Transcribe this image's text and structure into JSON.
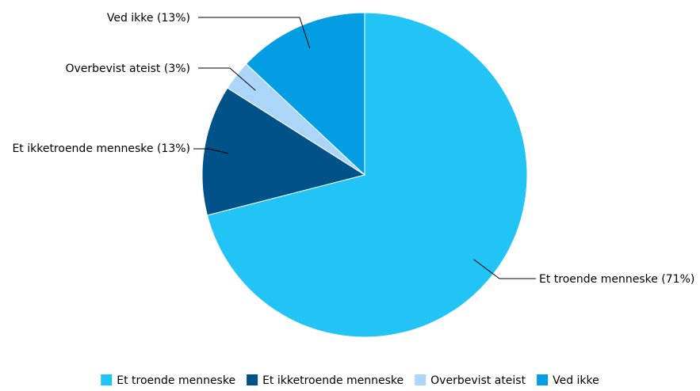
{
  "chart_data": {
    "type": "pie",
    "title": "",
    "slices": [
      {
        "label": "Et troende menneske",
        "value": 71,
        "display": "Et troende menneske (71%)",
        "color": "#22c3f5"
      },
      {
        "label": "Et ikketroende menneske",
        "value": 13,
        "display": "Et ikketroende menneske (13%)",
        "color": "#005288"
      },
      {
        "label": "Overbevist ateist",
        "value": 3,
        "display": "Overbevist ateist (3%)",
        "color": "#acd6f7"
      },
      {
        "label": "Ved ikke",
        "value": 13,
        "display": "Ved ikke (13%)",
        "color": "#039de3"
      }
    ],
    "legend": {
      "position": "bottom",
      "entries": [
        "Et troende menneske",
        "Et ikketroende menneske",
        "Overbevist ateist",
        "Ved ikke"
      ]
    }
  }
}
